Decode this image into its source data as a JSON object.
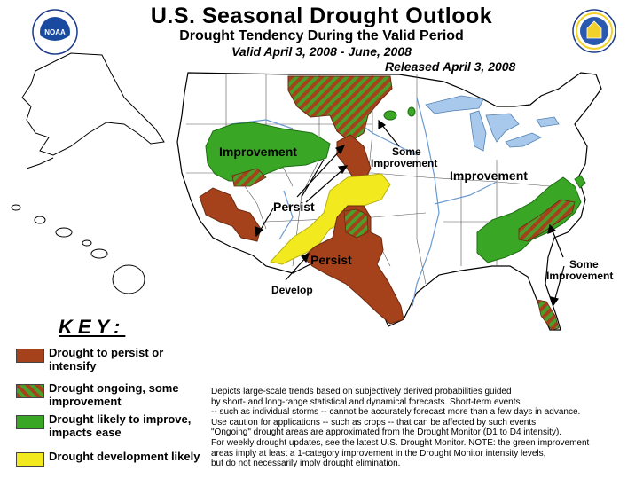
{
  "header": {
    "title": "U.S. Seasonal Drought Outlook",
    "subtitle": "Drought Tendency During the Valid Period",
    "valid": "Valid April 3, 2008 - June, 2008",
    "released": "Released April 3, 2008"
  },
  "logos": {
    "left": "noaa-logo",
    "left_text": "NOAA",
    "right": "dept-commerce-seal"
  },
  "map_labels": {
    "improvement_nw": "Improvement",
    "some_improvement_north_1": "Some",
    "some_improvement_north_2": "Improvement",
    "improvement_se": "Improvement",
    "persist_west": "Persist",
    "persist_south": "Persist",
    "develop": "Develop",
    "some_improvement_se_1": "Some",
    "some_improvement_se_2": "Improvement"
  },
  "key": {
    "title": "KEY:",
    "items": [
      {
        "label": "Drought to persist or intensify",
        "color": "#a5411b"
      },
      {
        "label": "Drought ongoing, some improvement",
        "color": "hatch-brown-green"
      },
      {
        "label": "Drought likely to improve, impacts ease",
        "color": "#3aa625"
      },
      {
        "label": "Drought development likely",
        "color": "#f2ea1e"
      }
    ]
  },
  "notes": [
    "Depicts large-scale trends based on subjectively derived probabilities guided",
    "by short- and long-range statistical and dynamical forecasts. Short-term events",
    "-- such as individual storms -- cannot be accurately forecast more than a few days in advance.",
    "Use caution for applications -- such as crops -- that can be affected by such events.",
    "\"Ongoing\" drought areas are approximated from the Drought Monitor (D1 to D4 intensity).",
    "For weekly drought updates, see the latest U.S. Drought Monitor. NOTE: the green improvement",
    "areas imply at least a 1-category improvement in the Drought Monitor intensity levels,",
    "but do not necessarily imply drought elimination."
  ],
  "colors": {
    "persist": "#a5411b",
    "improve": "#3aa625",
    "develop": "#f2ea1e",
    "water": "#a8c8ec",
    "land": "#ffffff",
    "border": "#000000"
  }
}
